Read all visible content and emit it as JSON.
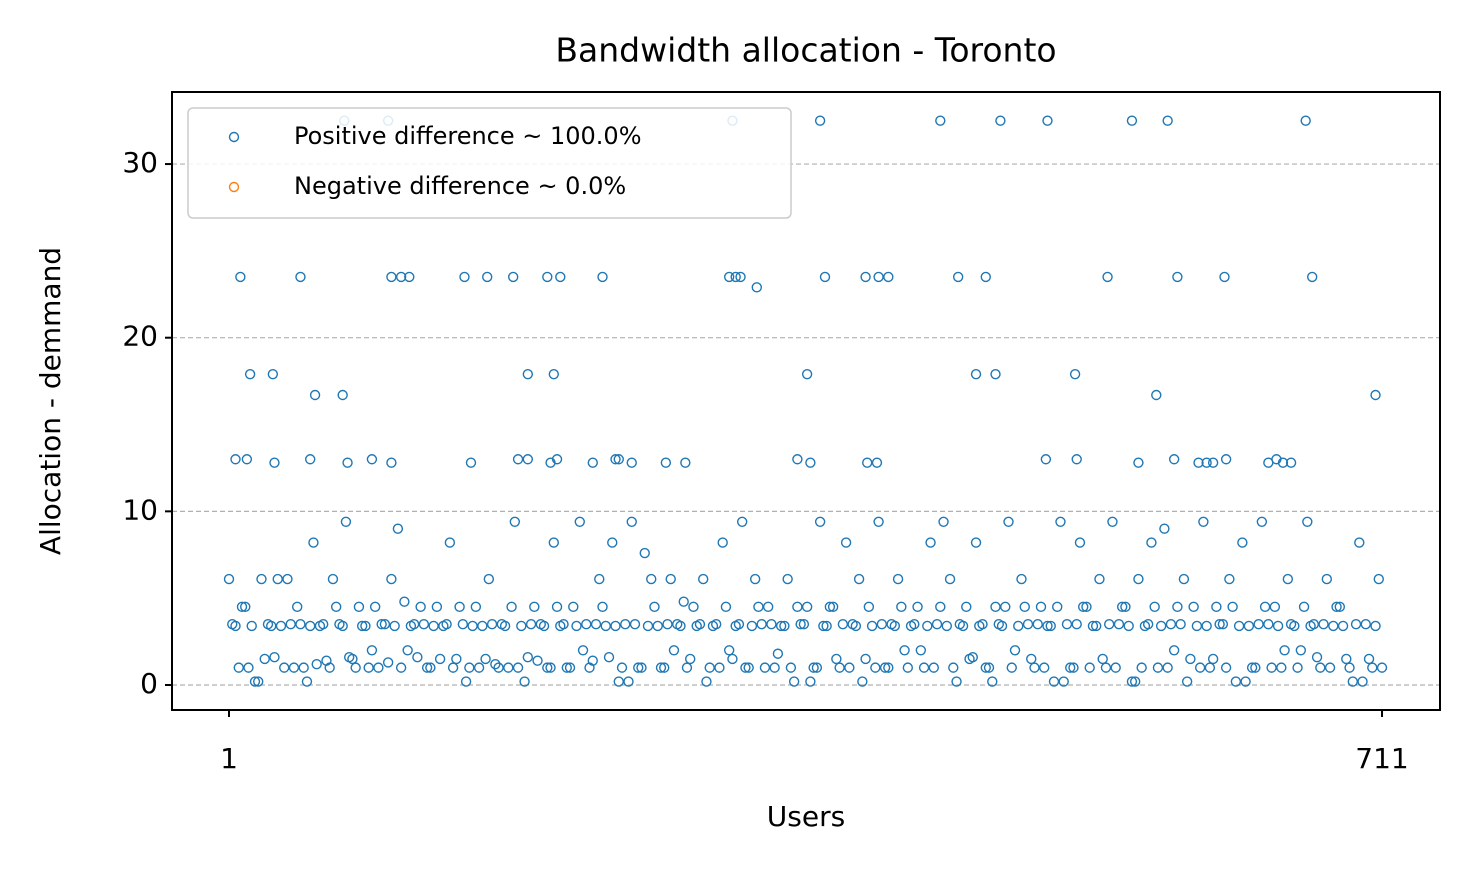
{
  "chart_data": {
    "type": "scatter",
    "title": "Bandwidth allocation - Toronto",
    "x_label": "Users",
    "y_label": "Allocation - demmand",
    "xlim": [
      -34.1,
      746.7
    ],
    "xticks": [
      1,
      711
    ],
    "ylim": [
      -1.44,
      34.15
    ],
    "yticks": [
      0,
      10,
      20,
      30
    ],
    "grid": "y",
    "legend": "upper left",
    "series": [
      {
        "name": "Positive difference ~ 100.0%",
        "color": "#1f77b4",
        "x": [
          72,
          99,
          311,
          365,
          439,
          476,
          505,
          557,
          579,
          664,
          8,
          45,
          101,
          107,
          112,
          146,
          160,
          176,
          197,
          205,
          231,
          309,
          313,
          316,
          326,
          368,
          393,
          401,
          407,
          450,
          467,
          542,
          585,
          614,
          668,
          14,
          28,
          185,
          201,
          357,
          461,
          473,
          522,
          54,
          71,
          572,
          707,
          5,
          12,
          29,
          51,
          74,
          89,
          101,
          150,
          179,
          185,
          199,
          203,
          225,
          239,
          241,
          249,
          270,
          282,
          351,
          359,
          394,
          400,
          504,
          523,
          561,
          583,
          598,
          603,
          607,
          615,
          641,
          646,
          650,
          655,
          1,
          5,
          9,
          13,
          17,
          21,
          25,
          29,
          33,
          37,
          41,
          45,
          49,
          53,
          57,
          61,
          65,
          69,
          73,
          77,
          81,
          85,
          89,
          93,
          97,
          101,
          105,
          109,
          113,
          117,
          121,
          125,
          129,
          133,
          137,
          141,
          145,
          149,
          153,
          157,
          161,
          165,
          169,
          173,
          177,
          181,
          185,
          189,
          193,
          197,
          201,
          205,
          209,
          213,
          217,
          221,
          225,
          229,
          233,
          237,
          241,
          245,
          249,
          253,
          257,
          261,
          265,
          269,
          273,
          277,
          281,
          285,
          289,
          293,
          297,
          301,
          305,
          309,
          313,
          317,
          321,
          325,
          329,
          333,
          337,
          341,
          345,
          349,
          353,
          357,
          361,
          365,
          369,
          373,
          377,
          381,
          385,
          389,
          393,
          397,
          401,
          405,
          409,
          413,
          417,
          421,
          425,
          429,
          433,
          437,
          441,
          445,
          449,
          453,
          457,
          461,
          465,
          469,
          473,
          477,
          481,
          485,
          489,
          493,
          497,
          501,
          505,
          509,
          513,
          517,
          521,
          525,
          529,
          533,
          537,
          541,
          545,
          549,
          553,
          557,
          561,
          565,
          569,
          573,
          577,
          581,
          585,
          589,
          593,
          597,
          601,
          605,
          609,
          613,
          617,
          621,
          625,
          629,
          633,
          637,
          641,
          645,
          649,
          653,
          657,
          661,
          665,
          669,
          673,
          677,
          681,
          685,
          689,
          693,
          697,
          701,
          705,
          709,
          3,
          7,
          11,
          15,
          19,
          23,
          27,
          31,
          35,
          39,
          43,
          47,
          51,
          55,
          59,
          63,
          67,
          71,
          75,
          79,
          83,
          87,
          91,
          95,
          99,
          103,
          107,
          111,
          115,
          119,
          123,
          127,
          131,
          135,
          139,
          143,
          147,
          151,
          155,
          159,
          163,
          167,
          171,
          175,
          179,
          183,
          187,
          191,
          195,
          199,
          203,
          207,
          211,
          215,
          219,
          223,
          227,
          231,
          235,
          239,
          243,
          247,
          251,
          255,
          259,
          263,
          267,
          271,
          275,
          279,
          283,
          287,
          291,
          295,
          299,
          303,
          307,
          311,
          315,
          319,
          323,
          327,
          331,
          335,
          339,
          343,
          347,
          351,
          355,
          359,
          363,
          367,
          371,
          375,
          379,
          383,
          387,
          391,
          395,
          399,
          403,
          407,
          411,
          415,
          419,
          423,
          427,
          431,
          435,
          439,
          443,
          447,
          451,
          455,
          459,
          463,
          467,
          471,
          475,
          479,
          483,
          487,
          491,
          495,
          499,
          503,
          507,
          511,
          515,
          519,
          523,
          527,
          531,
          535,
          539,
          543,
          547,
          551,
          555,
          559,
          563,
          567,
          571,
          575,
          579,
          583,
          587,
          591,
          595,
          599,
          603,
          607,
          611,
          615,
          619,
          623,
          627,
          631,
          635,
          639,
          643,
          647,
          651,
          655,
          659,
          663,
          667,
          671,
          675,
          679,
          683,
          687,
          691,
          695,
          699,
          703,
          707,
          711
        ],
        "values": [
          32.5,
          32.5,
          32.5,
          32.5,
          32.5,
          32.5,
          32.5,
          32.5,
          32.5,
          32.5,
          23.5,
          23.5,
          23.5,
          23.5,
          23.5,
          23.5,
          23.5,
          23.5,
          23.5,
          23.5,
          23.5,
          23.5,
          23.5,
          23.5,
          22.9,
          23.5,
          23.5,
          23.5,
          23.5,
          23.5,
          23.5,
          23.5,
          23.5,
          23.5,
          23.5,
          17.9,
          17.9,
          17.9,
          17.9,
          17.9,
          17.9,
          17.9,
          17.9,
          16.7,
          16.7,
          16.7,
          16.7,
          13,
          13,
          12.8,
          13,
          12.8,
          13,
          12.8,
          12.8,
          13,
          13,
          12.8,
          13,
          12.8,
          13,
          13,
          12.8,
          12.8,
          12.8,
          13,
          12.8,
          12.8,
          12.8,
          13,
          13,
          12.8,
          13,
          12.8,
          12.8,
          12.8,
          13,
          12.8,
          13,
          12.8,
          12.8,
          6.1,
          3.4,
          4.5,
          1.0,
          0.2,
          6.1,
          3.5,
          1.6,
          3.4,
          6.1,
          1.0,
          3.5,
          0.2,
          8.2,
          3.4,
          1.4,
          6.1,
          3.5,
          9.4,
          1.5,
          4.5,
          3.4,
          2.0,
          1.0,
          3.5,
          6.1,
          9.0,
          4.8,
          3.4,
          1.6,
          3.5,
          1.0,
          4.5,
          3.4,
          8.2,
          1.5,
          3.5,
          1.0,
          4.5,
          3.4,
          6.1,
          1.2,
          3.5,
          1.0,
          9.4,
          3.4,
          1.6,
          4.5,
          3.5,
          1.0,
          8.2,
          3.4,
          1.0,
          4.5,
          9.4,
          3.5,
          1.4,
          6.1,
          3.4,
          8.2,
          0.2,
          3.5,
          9.4,
          1.0,
          7.6,
          6.1,
          3.4,
          1.0,
          6.1,
          3.5,
          4.8,
          1.5,
          3.4,
          6.1,
          1.0,
          3.5,
          8.2,
          2.0,
          3.4,
          9.4,
          1.0,
          6.1,
          3.5,
          4.5,
          1.0,
          3.4,
          6.1,
          0.2,
          3.5,
          4.5,
          1.0,
          9.4,
          3.4,
          4.5,
          1.0,
          8.2,
          3.5,
          6.1,
          1.5,
          3.4,
          9.4,
          1.0,
          3.5,
          6.1,
          2.0,
          3.4,
          4.5,
          1.0,
          8.2,
          3.5,
          9.4,
          6.1,
          0.2,
          3.4,
          1.5,
          8.2,
          3.5,
          1.0,
          4.5,
          3.4,
          9.4,
          2.0,
          6.1,
          3.5,
          1.0,
          4.5,
          3.4,
          0.2,
          9.4,
          3.5,
          1.0,
          8.2,
          4.5,
          3.4,
          6.1,
          1.0,
          9.4,
          3.5,
          4.5,
          0.2,
          6.1,
          3.4,
          8.2,
          1.0,
          9.0,
          3.5,
          4.5,
          6.1,
          1.5,
          3.4,
          9.4,
          1.0,
          4.5,
          3.5,
          6.1,
          0.2,
          8.2,
          3.4,
          1.0,
          9.4,
          3.5,
          4.5,
          1.0,
          6.1,
          3.4,
          2.0,
          9.4,
          3.5,
          1.0,
          6.1,
          3.4,
          4.5,
          1.5,
          0.2,
          8.2,
          3.5,
          1.0,
          6.1,
          3.5,
          1.0,
          4.5,
          3.4,
          0.2,
          1.5,
          3.4,
          6.1,
          1.0,
          3.5,
          4.5,
          1.0,
          3.4,
          1.2,
          3.5,
          1.0,
          4.5,
          3.4,
          1.6,
          1.0,
          3.4,
          1.0,
          4.5,
          3.5,
          1.3,
          3.4,
          1.0,
          2.0,
          3.5,
          4.5,
          1.0,
          3.4,
          1.5,
          3.5,
          1.0,
          4.5,
          0.2,
          3.4,
          1.0,
          1.5,
          3.5,
          1.0,
          3.4,
          4.5,
          1.0,
          0.2,
          3.5,
          1.4,
          3.4,
          1.0,
          4.5,
          3.5,
          1.0,
          3.4,
          2.0,
          1.0,
          3.5,
          4.5,
          1.6,
          3.4,
          1.0,
          0.2,
          3.5,
          1.0,
          3.4,
          4.5,
          1.0,
          3.5,
          2.0,
          3.4,
          1.0,
          4.5,
          3.5,
          0.2,
          3.4,
          1.0,
          4.5,
          1.5,
          3.5,
          1.0,
          3.4,
          4.5,
          1.0,
          3.5,
          1.8,
          3.4,
          1.0,
          4.5,
          3.5,
          0.2,
          1.0,
          3.4,
          4.5,
          1.5,
          3.5,
          1.0,
          3.4,
          0.2,
          4.5,
          1.0,
          3.5,
          1.0,
          3.4,
          4.5,
          1.0,
          3.5,
          2.0,
          3.4,
          1.0,
          4.5,
          3.4,
          1.0,
          3.5,
          4.5,
          1.6,
          3.4,
          1.0,
          0.2,
          3.5,
          4.5,
          1.0,
          3.4,
          4.5,
          1.5,
          3.5,
          1.0,
          3.4,
          4.5,
          0.2,
          1.0,
          3.5,
          4.5,
          1.0,
          3.4,
          1.5,
          3.5,
          1.0,
          4.5,
          3.4,
          0.2,
          1.0,
          3.5,
          4.5,
          3.4,
          1.0,
          2.0,
          3.5,
          0.2,
          4.5,
          1.0,
          3.4,
          1.5,
          3.5,
          1.0,
          4.5,
          3.4,
          0.2,
          1.0,
          3.5,
          4.5,
          1.0,
          3.4,
          2.0,
          3.5,
          1.0,
          4.5,
          3.4,
          1.6,
          3.5,
          1.0,
          4.5,
          3.4,
          1.0,
          3.5,
          0.2,
          1.5,
          3.4,
          1.0
        ]
      },
      {
        "name": "Negative difference ~ 0.0%",
        "color": "#ff7f0e",
        "x": [],
        "values": []
      }
    ]
  }
}
